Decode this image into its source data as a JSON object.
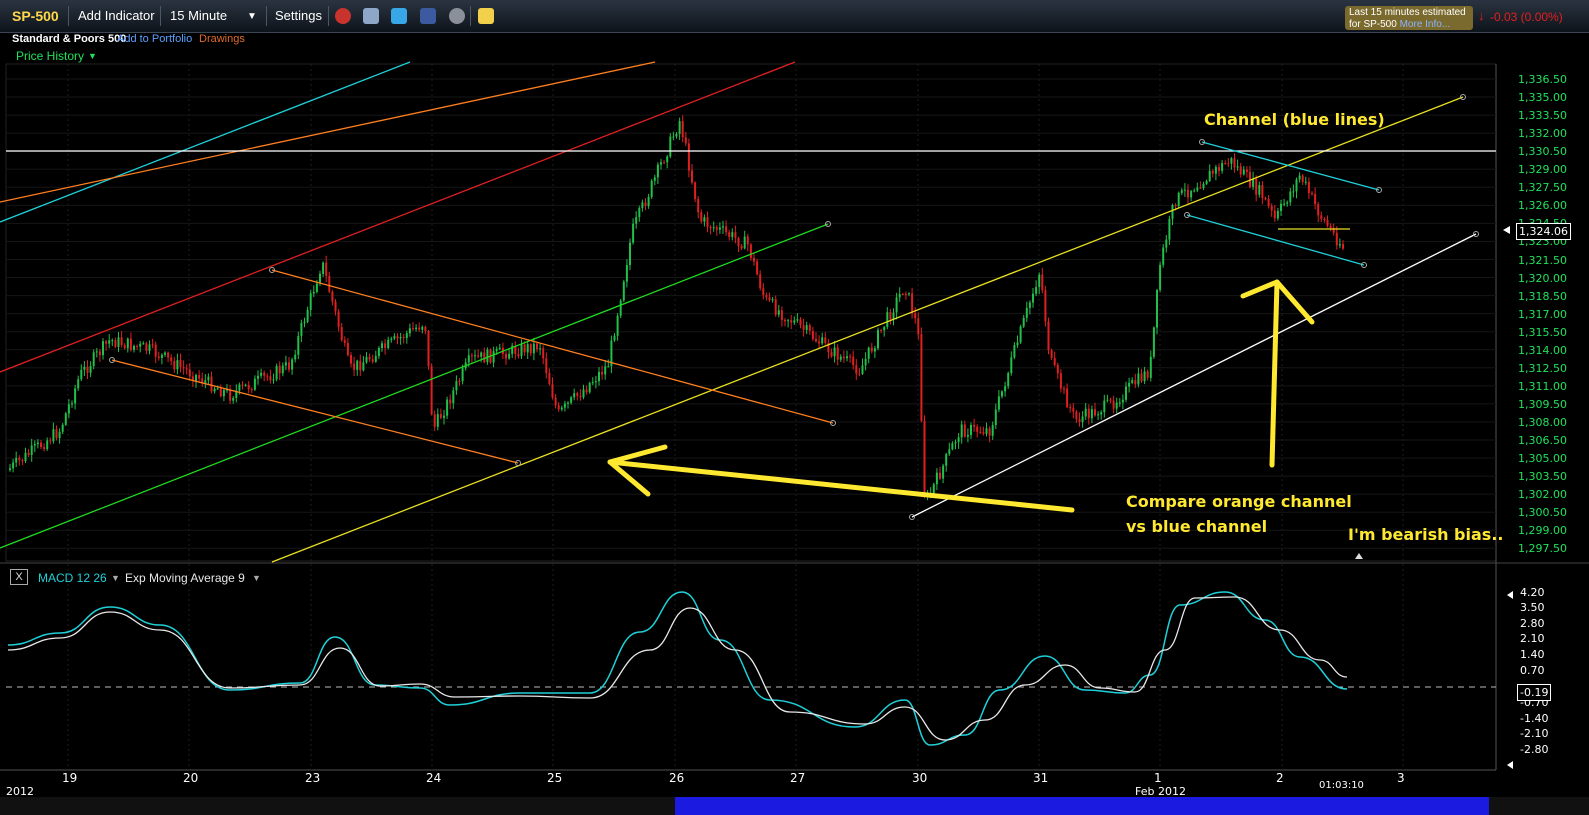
{
  "toolbar": {
    "symbol": "SP-500",
    "add_indicator": "Add Indicator",
    "interval": "15 Minute",
    "settings": "Settings",
    "delay_line1": "Last 15 minutes estimated",
    "delay_line2": "for SP-500",
    "more_info": "More Info...",
    "change": "-0.03 (0.00%)",
    "icons": [
      "alarm-icon",
      "document-icon",
      "twitter-icon",
      "facebook-icon",
      "people-icon",
      "note-icon"
    ]
  },
  "subheader": {
    "name": "Standard & Poors 500",
    "add_portfolio": "Add to Portfolio",
    "drawings": "Drawings",
    "price_history": "Price History"
  },
  "price_panel": {
    "last_price": "1,324.06",
    "y_labels": [
      "1,336.50",
      "1,335.00",
      "1,333.50",
      "1,332.00",
      "1,330.50",
      "1,329.00",
      "1,327.50",
      "1,326.00",
      "1,324.50",
      "1,323.00",
      "1,321.50",
      "1,320.00",
      "1,318.50",
      "1,317.00",
      "1,315.50",
      "1,314.00",
      "1,312.50",
      "1,311.00",
      "1,309.50",
      "1,308.00",
      "1,306.50",
      "1,305.00",
      "1,303.50",
      "1,302.00",
      "1,300.50",
      "1,299.00",
      "1,297.50"
    ]
  },
  "macd_panel": {
    "close": "X",
    "macd_label": "MACD 12 26",
    "ema_label": "Exp Moving Average 9",
    "current": "-0.19",
    "y_labels": [
      "4.20",
      "3.50",
      "2.80",
      "2.10",
      "1.40",
      "0.70",
      "-0.70",
      "-1.40",
      "-2.10",
      "-2.80"
    ]
  },
  "x_axis": {
    "labels": [
      "19",
      "20",
      "23",
      "24",
      "25",
      "26",
      "27",
      "30",
      "31",
      "1",
      "2",
      "3"
    ],
    "year_left": "2012",
    "month_label": "Feb 2012",
    "time": "01:03:10"
  },
  "annotations": {
    "channel": "Channel (blue lines)",
    "compare_1": "Compare orange channel",
    "compare_2": "vs blue channel",
    "bias": "I'm bearish bias.."
  },
  "colors": {
    "up": "#21c04a",
    "down": "#e02020",
    "axis_green": "#21e05a",
    "annotation": "#ffe830",
    "macd": "#1fd0d8"
  },
  "chart_data": {
    "type": "candlestick",
    "title": "",
    "ylim": [
      1296.5,
      1337.5
    ],
    "x_categories": [
      "19",
      "20",
      "23",
      "24",
      "25",
      "26",
      "27",
      "30",
      "31",
      "1",
      "2",
      "3"
    ],
    "last": 1324.06,
    "macd_series": [
      {
        "name": "MACD 12 26",
        "approx_values": [
          1.9,
          2.3,
          3.5,
          2.2,
          0.0,
          0.1,
          2.8,
          0.1,
          -0.4,
          -0.2,
          0.4,
          4.2,
          -1.6,
          -1.7,
          -1.8,
          -3.1,
          1.4,
          0.0,
          4.2,
          -0.19
        ]
      },
      {
        "name": "Exp Moving Average 9",
        "approx_values": [
          2.0,
          2.2,
          3.3,
          2.4,
          0.2,
          0.0,
          1.9,
          0.1,
          -0.2,
          -0.3,
          0.1,
          3.3,
          -1.0,
          -1.8,
          -2.1,
          -2.6,
          1.0,
          0.0,
          4.2,
          0.4
        ]
      }
    ]
  }
}
